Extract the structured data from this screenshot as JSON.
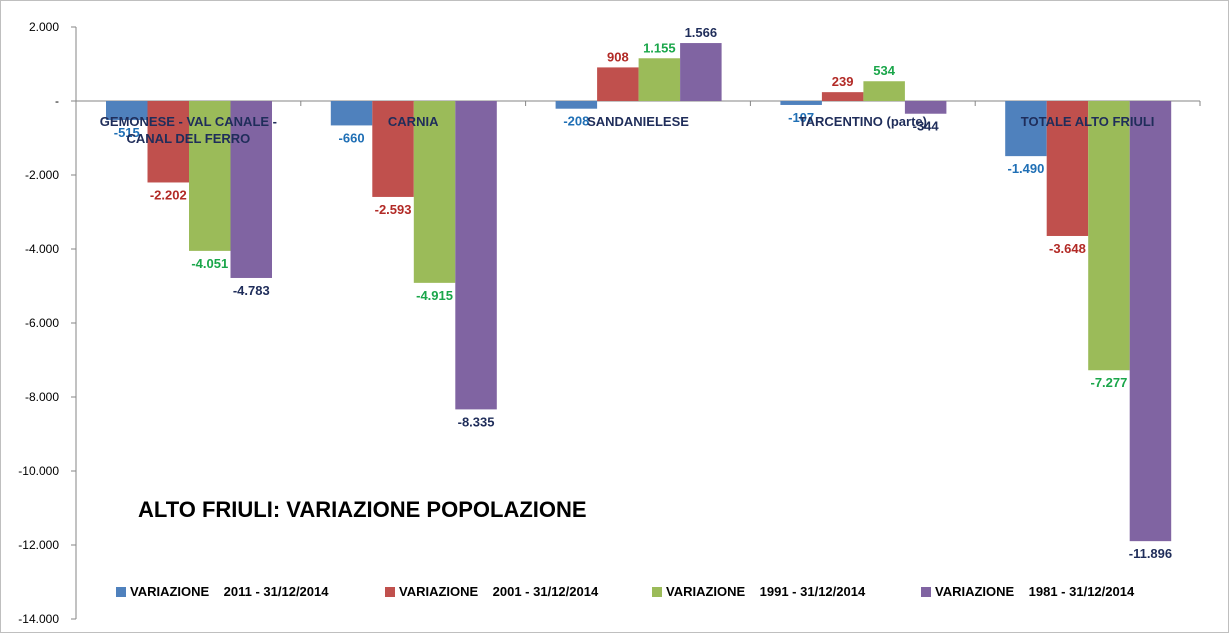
{
  "chart_data": {
    "type": "bar",
    "title": "ALTO FRIULI: VARIAZIONE POPOLAZIONE",
    "categories": [
      "GEMONESE - VAL CANALE - CANAL DEL FERRO",
      "CARNIA",
      "SANDANIELESE",
      "TARCENTINO (parte)",
      "TOTALE ALTO FRIULI"
    ],
    "series": [
      {
        "name": "VARIAZIONE    2011 - 31/12/2014",
        "color": "#4f81bd",
        "label_color": "#1f6fb5",
        "values": [
          -515,
          -660,
          -208,
          -107,
          -1490
        ]
      },
      {
        "name": "VARIAZIONE    2001 - 31/12/2014",
        "color": "#c0504d",
        "label_color": "#b22a26",
        "values": [
          -2202,
          -2593,
          908,
          239,
          -3648
        ]
      },
      {
        "name": "VARIAZIONE    1991 - 31/12/2014",
        "color": "#9bbb59",
        "label_color": "#1aa64a",
        "values": [
          -4051,
          -4915,
          1155,
          534,
          -7277
        ]
      },
      {
        "name": "VARIAZIONE    1981 - 31/12/2014",
        "color": "#8064a2",
        "label_color": "#1f2d5a",
        "values": [
          -4783,
          -8335,
          1566,
          -344,
          -11896
        ]
      }
    ],
    "data_labels": [
      [
        "-515",
        "-660",
        "-208",
        "-107",
        "-1.490"
      ],
      [
        "-2.202",
        "-2.593",
        "908",
        "239",
        "-3.648"
      ],
      [
        "-4.051",
        "-4.915",
        "1.155",
        "534",
        "-7.277"
      ],
      [
        "-4.783",
        "-8.335",
        "1.566",
        "-344",
        "-11.896"
      ]
    ],
    "ylim": [
      -14000,
      2000
    ],
    "yticks": [
      2000,
      0,
      -2000,
      -4000,
      -6000,
      -8000,
      -10000,
      -12000,
      -14000
    ],
    "ytick_labels": [
      "2.000",
      "-",
      "-2.000",
      "-4.000",
      "-6.000",
      "-8.000",
      "-10.000",
      "-12.000",
      "-14.000"
    ],
    "grid": false,
    "legend_position": "bottom",
    "xlabel": "",
    "ylabel": ""
  }
}
